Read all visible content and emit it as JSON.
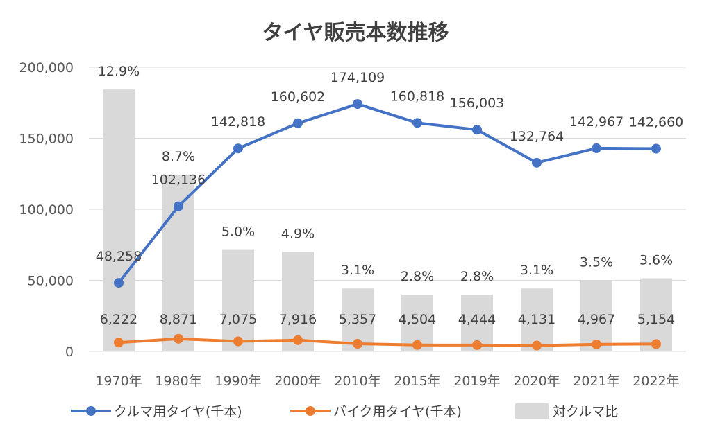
{
  "chart_data": {
    "type": "bar+line",
    "title": "タイヤ販売本数推移",
    "categories": [
      "1970年",
      "1980年",
      "1990年",
      "2000年",
      "2010年",
      "2015年",
      "2019年",
      "2020年",
      "2021年",
      "2022年"
    ],
    "series": [
      {
        "name": "クルマ用タイヤ(千本)",
        "type": "line",
        "axis": "primary",
        "color": "#4472C4",
        "values": [
          48258,
          102136,
          142818,
          160602,
          174109,
          160818,
          156003,
          132764,
          142967,
          142660
        ],
        "labels": [
          "48,258",
          "102,136",
          "142,818",
          "160,602",
          "174,109",
          "160,818",
          "156,003",
          "132,764",
          "142,967",
          "142,660"
        ]
      },
      {
        "name": "バイク用タイヤ(千本)",
        "type": "line",
        "axis": "primary",
        "color": "#ED7D31",
        "values": [
          6222,
          8871,
          7075,
          7916,
          5357,
          4504,
          4444,
          4131,
          4967,
          5154
        ],
        "labels": [
          "6,222",
          "8,871",
          "7,075",
          "7,916",
          "5,357",
          "4,504",
          "4,444",
          "4,131",
          "4,967",
          "5,154"
        ]
      },
      {
        "name": "対クルマ比",
        "type": "bar",
        "axis": "secondary",
        "color": "#D9D9D9",
        "values": [
          12.9,
          8.7,
          5.0,
          4.9,
          3.1,
          2.8,
          2.8,
          3.1,
          3.5,
          3.6
        ],
        "labels": [
          "12.9%",
          "8.7%",
          "5.0%",
          "4.9%",
          "3.1%",
          "2.8%",
          "2.8%",
          "3.1%",
          "3.5%",
          "3.6%"
        ]
      }
    ],
    "ylim": [
      0,
      200000
    ],
    "y2lim": [
      0,
      14
    ],
    "yticks": [
      0,
      50000,
      100000,
      150000,
      200000
    ],
    "ytick_labels": [
      "0",
      "50,000",
      "100,000",
      "150,000",
      "200,000"
    ],
    "grid": true,
    "legend": "bottom"
  }
}
